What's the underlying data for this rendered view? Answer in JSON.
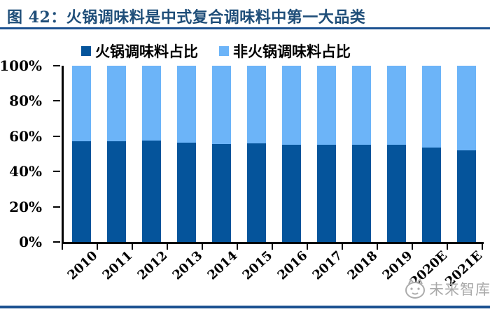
{
  "header": {
    "title": "图 42：火锅调味料是中式复合调味料中第一大品类"
  },
  "chart_data": {
    "type": "bar",
    "stacked": true,
    "title": "火锅调味料是中式复合调味料中第一大品类",
    "categories": [
      "2010",
      "2011",
      "2012",
      "2013",
      "2014",
      "2015",
      "2016",
      "2017",
      "2018",
      "2019",
      "2020E",
      "2021E"
    ],
    "series": [
      {
        "name": "火锅调味料占比",
        "values": [
          57,
          57,
          57.5,
          56.5,
          55.5,
          56,
          55,
          55,
          55,
          55,
          53.5,
          52
        ]
      },
      {
        "name": "非火锅调味料占比",
        "values": [
          43,
          43,
          42.5,
          43.5,
          44.5,
          44,
          45,
          45,
          45,
          45,
          46.5,
          48
        ]
      }
    ],
    "unit": "%",
    "ylim": [
      0,
      100
    ],
    "yticks": [
      "100%",
      "80%",
      "60%",
      "40%",
      "20%",
      "0%"
    ],
    "grid": false,
    "legend_position": "top"
  },
  "watermark": {
    "text": "未来智库",
    "logo": "mascot-logo"
  },
  "colors": {
    "series_dark": "#05549B",
    "series_light": "#6CB4F8",
    "title_text": "#1F4E79",
    "rule": "#1C5191",
    "axis": "#000000",
    "watermark_text": "#A9A9A9"
  }
}
